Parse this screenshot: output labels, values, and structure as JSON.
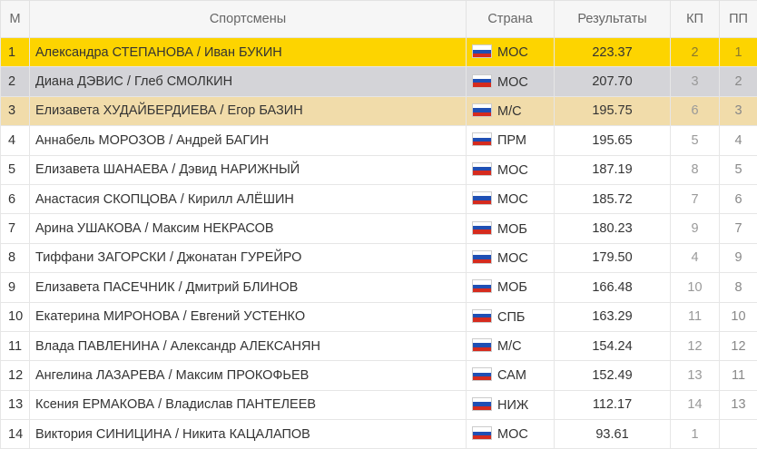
{
  "table": {
    "headers": [
      "М",
      "Спортсмены",
      "Страна",
      "Результаты",
      "КП",
      "ПП"
    ],
    "rows": [
      [
        "1",
        "Александра СТЕПАНОВА / Иван БУКИН",
        "МОС",
        "223.37",
        "2",
        "1"
      ],
      [
        "2",
        "Диана ДЭВИС / Глеб СМОЛКИН",
        "МОС",
        "207.70",
        "3",
        "2"
      ],
      [
        "3",
        "Елизавета ХУДАЙБЕРДИЕВА / Егор БАЗИН",
        "М/С",
        "195.75",
        "6",
        "3"
      ],
      [
        "4",
        "Аннабель МОРОЗОВ / Андрей БАГИН",
        "ПРМ",
        "195.65",
        "5",
        "4"
      ],
      [
        "5",
        "Елизавета ШАНАЕВА / Дэвид НАРИЖНЫЙ",
        "МОС",
        "187.19",
        "8",
        "5"
      ],
      [
        "6",
        "Анастасия СКОПЦОВА / Кирилл АЛЁШИН",
        "МОС",
        "185.72",
        "7",
        "6"
      ],
      [
        "7",
        "Арина УШАКОВА / Максим НЕКРАСОВ",
        "МОБ",
        "180.23",
        "9",
        "7"
      ],
      [
        "8",
        "Тиффани ЗАГОРСКИ / Джонатан ГУРЕЙРО",
        "МОС",
        "179.50",
        "4",
        "9"
      ],
      [
        "9",
        "Елизавета ПАСЕЧНИК / Дмитрий БЛИНОВ",
        "МОБ",
        "166.48",
        "10",
        "8"
      ],
      [
        "10",
        "Екатерина МИРОНОВА / Евгений УСТЕНКО",
        "СПБ",
        "163.29",
        "11",
        "10"
      ],
      [
        "11",
        "Влада ПАВЛЕНИНА / Александр АЛЕКСАНЯН",
        "М/С",
        "154.24",
        "12",
        "12"
      ],
      [
        "12",
        "Ангелина ЛАЗАРЕВА / Максим ПРОКОФЬЕВ",
        "САМ",
        "152.49",
        "13",
        "11"
      ],
      [
        "13",
        "Ксения ЕРМАКОВА / Владислав ПАНТЕЛЕЕВ",
        "НИЖ",
        "112.17",
        "14",
        "13"
      ],
      [
        "14",
        "Виктория СИНИЦИНА / Никита КАЦАЛАПОВ",
        "МОС",
        "93.61",
        "1"
      ]
    ]
  }
}
